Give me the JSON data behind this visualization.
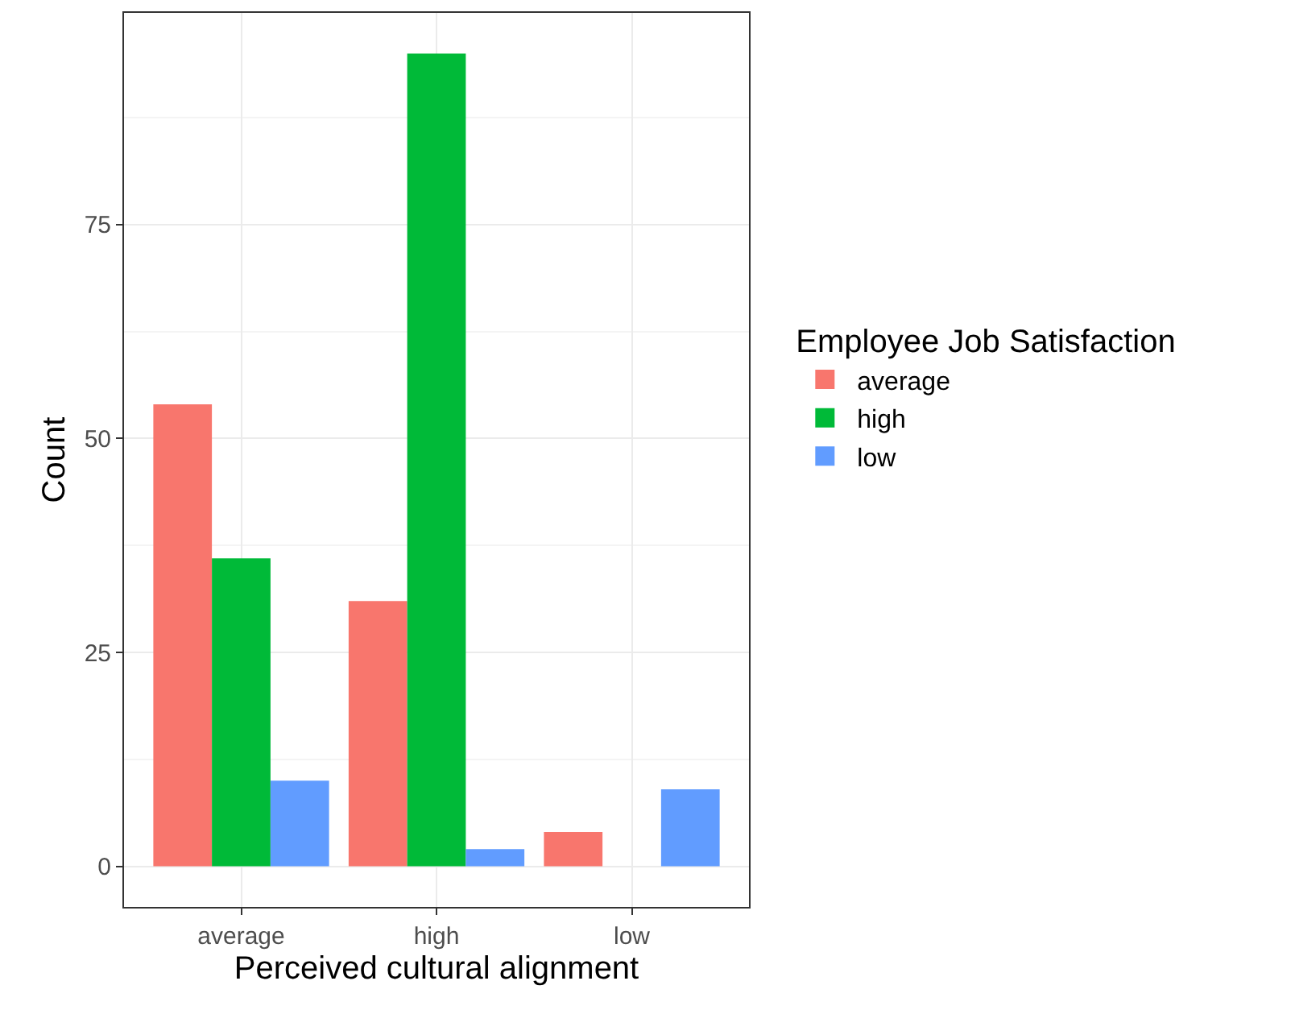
{
  "chart_data": {
    "type": "bar",
    "xlabel": "Perceived cultural alignment",
    "ylabel": "Count",
    "legend_title": "Employee Job Satisfaction",
    "categories": [
      "average",
      "high",
      "low"
    ],
    "series": [
      {
        "name": "average",
        "color": "#f8766d",
        "values": [
          54,
          31,
          4
        ]
      },
      {
        "name": "high",
        "color": "#00ba38",
        "values": [
          36,
          95,
          null
        ]
      },
      {
        "name": "low",
        "color": "#619cff",
        "values": [
          10,
          2,
          9
        ]
      }
    ],
    "ylim": [
      -4.75,
      99.75
    ],
    "yticks": [
      0,
      25,
      50,
      75
    ],
    "grid": true,
    "legend": "right"
  }
}
